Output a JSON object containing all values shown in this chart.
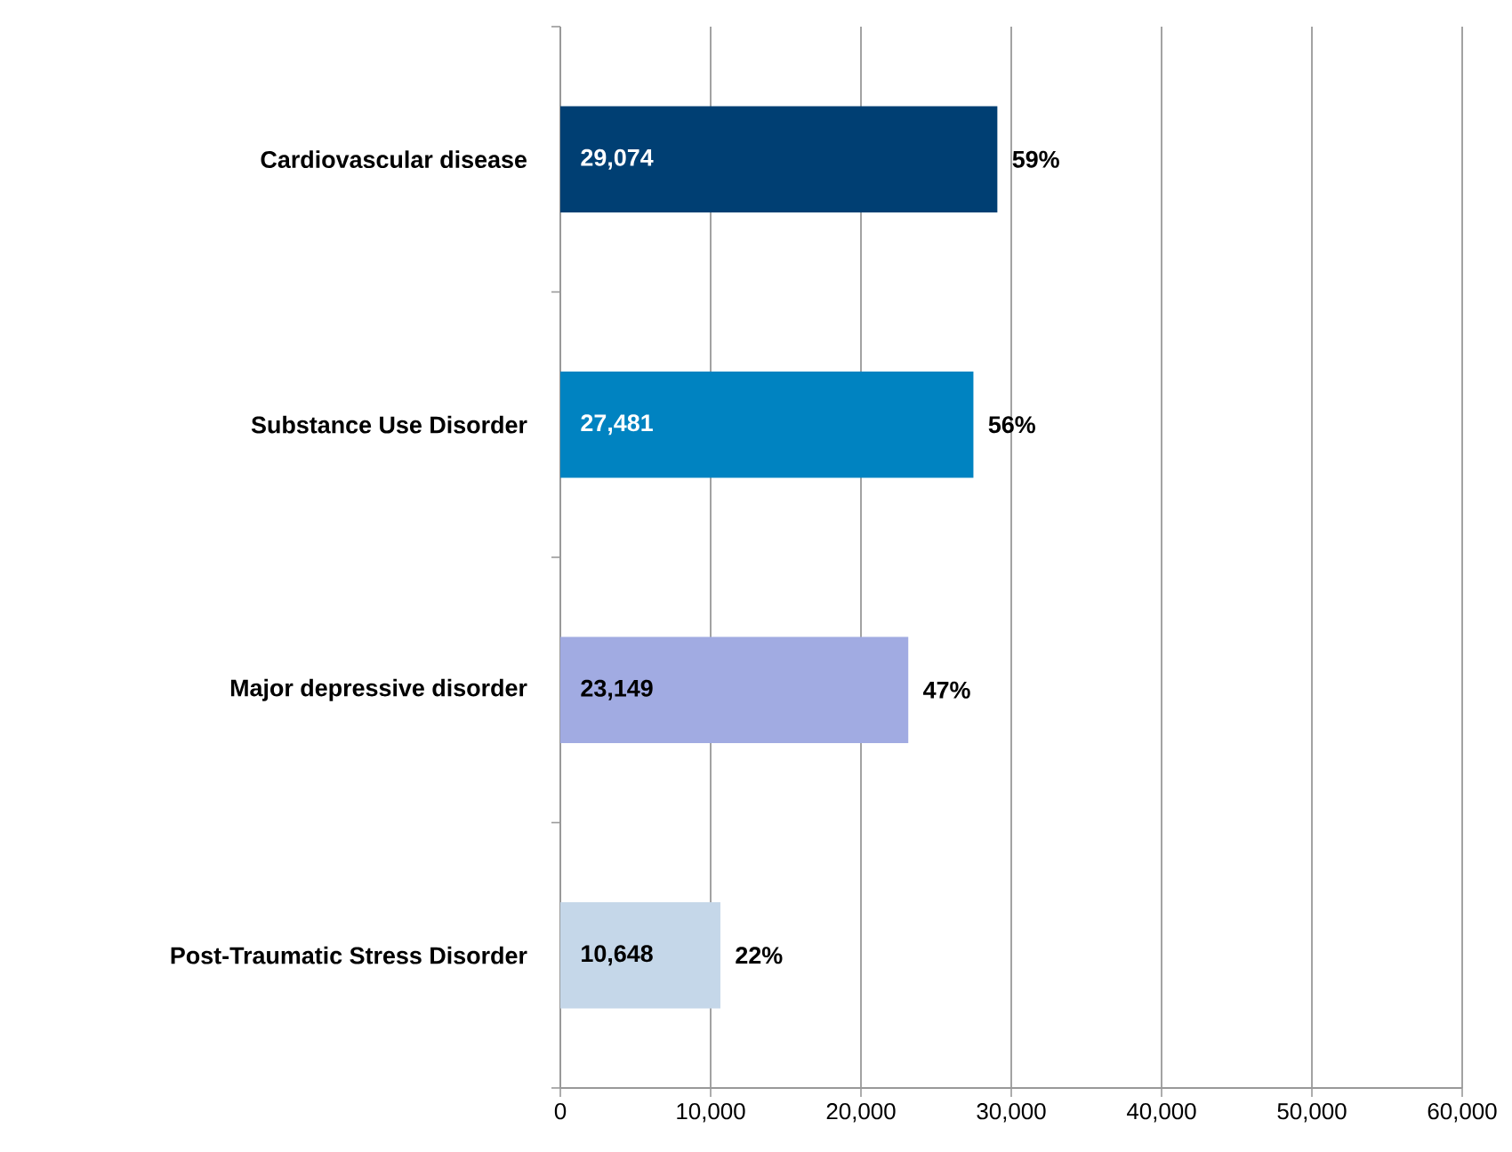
{
  "chart_data": {
    "type": "bar",
    "orientation": "horizontal",
    "categories": [
      "Cardiovascular disease",
      "Substance Use Disorder",
      "Major depressive disorder",
      "Post-Traumatic Stress Disorder"
    ],
    "values": [
      29074,
      27481,
      23149,
      10648
    ],
    "value_labels": [
      "29,074",
      "27,481",
      "23,149",
      "10,648"
    ],
    "colors": [
      "#003f73",
      "#0083c1",
      "#a1abe2",
      "#c5d7e9"
    ],
    "annotations": [
      {
        "text": "59%",
        "x": 29074,
        "y": "Cardiovascular disease"
      },
      {
        "text": "56%",
        "x": 27481,
        "y": "Substance Use Disorder"
      },
      {
        "text": "47%",
        "x": 23149,
        "y": "Major depressive disorder"
      },
      {
        "text": "22%",
        "x": 10648,
        "y": "Post-Traumatic Stress Disorder"
      }
    ],
    "xlim": [
      0,
      60000
    ],
    "xticks": [
      0,
      {
        "value": 10000,
        "label": "10,000"
      },
      {
        "value": 20000,
        "label": "20,000"
      },
      {
        "value": 30000,
        "label": "30,000"
      },
      {
        "value": 40000,
        "label": "40,000"
      },
      {
        "value": 50000,
        "label": "50,000"
      },
      {
        "value": 60000,
        "label": "60,000"
      }
    ],
    "grid": "x"
  }
}
